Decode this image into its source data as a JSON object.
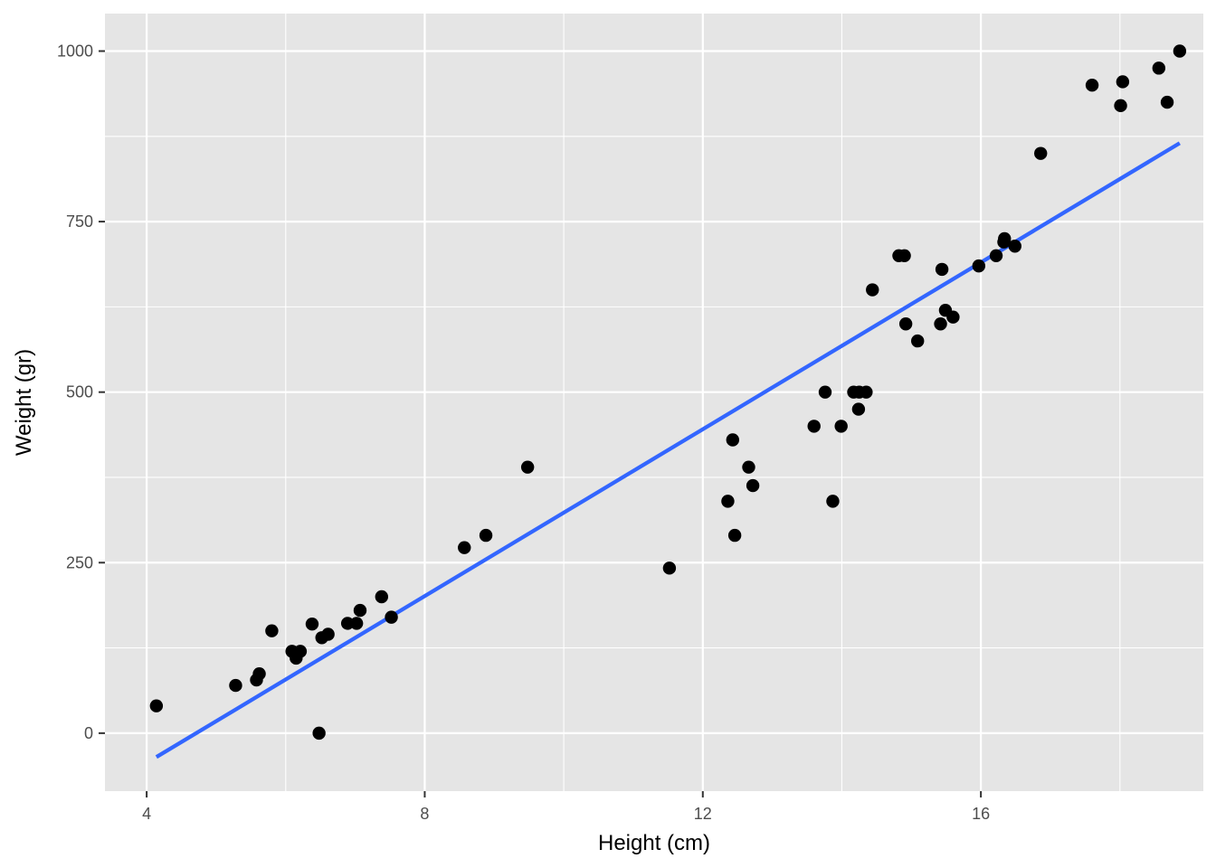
{
  "chart_data": {
    "type": "scatter",
    "xlabel": "Height (cm)",
    "ylabel": "Weight (gr)",
    "x_ticks": [
      4,
      8,
      12,
      16
    ],
    "y_ticks": [
      0,
      250,
      500,
      750,
      1000
    ],
    "xlim": [
      3.4,
      19.2
    ],
    "ylim": [
      -85,
      1055
    ],
    "grid": true,
    "legend": "none",
    "points": [
      [
        4.14,
        40
      ],
      [
        5.28,
        70
      ],
      [
        5.58,
        78
      ],
      [
        5.62,
        87
      ],
      [
        5.8,
        150
      ],
      [
        6.09,
        120
      ],
      [
        6.15,
        110
      ],
      [
        6.21,
        120
      ],
      [
        6.38,
        160
      ],
      [
        6.48,
        0
      ],
      [
        6.52,
        140
      ],
      [
        6.61,
        145
      ],
      [
        6.89,
        161
      ],
      [
        7.02,
        161
      ],
      [
        7.07,
        180
      ],
      [
        7.38,
        200
      ],
      [
        7.52,
        170
      ],
      [
        8.57,
        272
      ],
      [
        8.88,
        290
      ],
      [
        9.48,
        390
      ],
      [
        11.52,
        242
      ],
      [
        12.36,
        340
      ],
      [
        12.43,
        430
      ],
      [
        12.46,
        290
      ],
      [
        12.66,
        390
      ],
      [
        12.72,
        363
      ],
      [
        13.6,
        450
      ],
      [
        13.76,
        500
      ],
      [
        13.87,
        340
      ],
      [
        13.99,
        450
      ],
      [
        14.17,
        500
      ],
      [
        14.24,
        475
      ],
      [
        14.25,
        500
      ],
      [
        14.35,
        500
      ],
      [
        14.44,
        650
      ],
      [
        14.82,
        700
      ],
      [
        14.9,
        700
      ],
      [
        14.92,
        600
      ],
      [
        15.09,
        575
      ],
      [
        15.42,
        600
      ],
      [
        15.44,
        680
      ],
      [
        15.49,
        620
      ],
      [
        15.6,
        610
      ],
      [
        15.97,
        685
      ],
      [
        16.22,
        700
      ],
      [
        16.33,
        720
      ],
      [
        16.34,
        725
      ],
      [
        16.49,
        714
      ],
      [
        16.86,
        850
      ],
      [
        17.6,
        950
      ],
      [
        18.01,
        920
      ],
      [
        18.04,
        955
      ],
      [
        18.56,
        975
      ],
      [
        18.68,
        925
      ],
      [
        18.86,
        1000
      ]
    ],
    "trend_line": {
      "color": "#3366ff",
      "x": [
        4.14,
        18.86
      ],
      "y": [
        -35,
        865
      ]
    },
    "colors": {
      "panel_background": "#e5e5e5",
      "grid": "#ffffff",
      "point": "#000000"
    }
  }
}
